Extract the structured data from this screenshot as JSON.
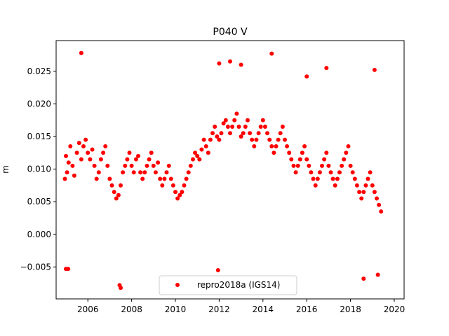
{
  "chart_data": {
    "type": "scatter",
    "title": "P040 V",
    "xlabel": "",
    "ylabel": "m",
    "xlim": [
      2004.55,
      2020.45
    ],
    "ylim": [
      -0.0099,
      0.0297
    ],
    "xticks": [
      2006,
      2008,
      2010,
      2012,
      2014,
      2016,
      2018,
      2020
    ],
    "xtick_labels": [
      "2006",
      "2008",
      "2010",
      "2012",
      "2014",
      "2016",
      "2018",
      "2020"
    ],
    "yticks": [
      -0.005,
      0.0,
      0.005,
      0.01,
      0.015,
      0.02,
      0.025
    ],
    "ytick_labels": [
      "−0.005",
      "0.000",
      "0.005",
      "0.010",
      "0.015",
      "0.020",
      "0.025"
    ],
    "grid": false,
    "legend": {
      "position": "bottom-center"
    },
    "series": [
      {
        "name": "repro2018a (IGS14)",
        "color": "#ff0000",
        "marker": "circle",
        "x": [
          2004.95,
          2005.0,
          2005.05,
          2005.12,
          2005.2,
          2005.3,
          2005.38,
          2005.5,
          2005.6,
          2005.7,
          2005.8,
          2005.9,
          2006.0,
          2006.1,
          2006.2,
          2006.3,
          2006.4,
          2006.5,
          2006.6,
          2006.7,
          2006.8,
          2006.9,
          2007.0,
          2007.1,
          2007.2,
          2007.3,
          2007.4,
          2007.5,
          2007.6,
          2007.7,
          2007.8,
          2007.9,
          2008.0,
          2008.1,
          2008.2,
          2008.3,
          2008.4,
          2008.5,
          2008.6,
          2008.7,
          2008.8,
          2008.9,
          2009.0,
          2009.1,
          2009.2,
          2009.3,
          2009.4,
          2009.5,
          2009.6,
          2009.7,
          2009.8,
          2009.9,
          2010.0,
          2010.1,
          2010.2,
          2010.3,
          2010.4,
          2010.5,
          2010.6,
          2010.7,
          2010.8,
          2010.9,
          2011.0,
          2011.1,
          2011.2,
          2011.3,
          2011.4,
          2011.5,
          2011.6,
          2011.7,
          2011.8,
          2011.9,
          2012.0,
          2012.1,
          2012.2,
          2012.3,
          2012.4,
          2012.5,
          2012.6,
          2012.7,
          2012.8,
          2012.9,
          2013.0,
          2013.1,
          2013.2,
          2013.3,
          2013.4,
          2013.5,
          2013.6,
          2013.7,
          2013.8,
          2013.9,
          2014.0,
          2014.1,
          2014.2,
          2014.3,
          2014.4,
          2014.5,
          2014.6,
          2014.7,
          2014.8,
          2014.9,
          2015.0,
          2015.1,
          2015.2,
          2015.3,
          2015.4,
          2015.5,
          2015.6,
          2015.7,
          2015.8,
          2015.9,
          2016.0,
          2016.1,
          2016.2,
          2016.3,
          2016.4,
          2016.5,
          2016.6,
          2016.7,
          2016.8,
          2016.9,
          2017.0,
          2017.1,
          2017.2,
          2017.3,
          2017.4,
          2017.5,
          2017.6,
          2017.7,
          2017.8,
          2017.9,
          2018.0,
          2018.1,
          2018.2,
          2018.3,
          2018.4,
          2018.5,
          2018.6,
          2018.7,
          2018.8,
          2018.9,
          2019.0,
          2019.1,
          2019.2,
          2019.3,
          2019.4,
          2005.7,
          2007.45,
          2007.5,
          2005.0,
          2005.1,
          2016.0,
          2016.9,
          2019.1,
          2018.6,
          2019.25,
          2012.0,
          2011.95,
          2014.4,
          2012.5,
          2013.0
        ],
        "y": [
          0.0085,
          0.012,
          0.0095,
          0.011,
          0.0135,
          0.0105,
          0.009,
          0.0125,
          0.014,
          0.0115,
          0.0135,
          0.0145,
          0.0125,
          0.0115,
          0.013,
          0.0105,
          0.0085,
          0.0095,
          0.0115,
          0.0125,
          0.0135,
          0.0105,
          0.0085,
          0.0075,
          0.0065,
          0.0055,
          0.006,
          0.0075,
          0.0095,
          0.0105,
          0.0115,
          0.0125,
          0.0105,
          0.0095,
          0.0115,
          0.012,
          0.0095,
          0.0085,
          0.0095,
          0.0105,
          0.0115,
          0.0125,
          0.0105,
          0.0095,
          0.011,
          0.0085,
          0.0075,
          0.0085,
          0.0095,
          0.0105,
          0.0085,
          0.0075,
          0.0065,
          0.0055,
          0.006,
          0.0065,
          0.0075,
          0.0085,
          0.0095,
          0.0105,
          0.0115,
          0.0125,
          0.012,
          0.0115,
          0.013,
          0.0145,
          0.0135,
          0.0125,
          0.0145,
          0.0155,
          0.0165,
          0.015,
          0.0145,
          0.0155,
          0.017,
          0.0175,
          0.0165,
          0.0155,
          0.0165,
          0.0175,
          0.0185,
          0.0165,
          0.015,
          0.0155,
          0.0165,
          0.0175,
          0.0155,
          0.0145,
          0.0135,
          0.0145,
          0.0155,
          0.0165,
          0.0175,
          0.0165,
          0.0155,
          0.0145,
          0.0135,
          0.0125,
          0.0135,
          0.0145,
          0.0155,
          0.0165,
          0.0145,
          0.0135,
          0.0125,
          0.0115,
          0.0105,
          0.0095,
          0.0105,
          0.0115,
          0.0125,
          0.0135,
          0.0115,
          0.0105,
          0.0095,
          0.0085,
          0.0075,
          0.0085,
          0.0095,
          0.0105,
          0.0115,
          0.0125,
          0.0105,
          0.0095,
          0.0085,
          0.0075,
          0.0085,
          0.0095,
          0.0105,
          0.0115,
          0.0125,
          0.0135,
          0.0105,
          0.0095,
          0.0085,
          0.0075,
          0.0065,
          0.0055,
          0.0065,
          0.0075,
          0.0085,
          0.0095,
          0.0075,
          0.0065,
          0.0055,
          0.0045,
          0.0035,
          0.0278,
          -0.0078,
          -0.0082,
          -0.0053,
          -0.0053,
          0.0242,
          0.0255,
          0.0252,
          -0.0068,
          -0.0062,
          0.0262,
          -0.0055,
          0.0277,
          0.0265,
          0.026
        ]
      }
    ]
  }
}
